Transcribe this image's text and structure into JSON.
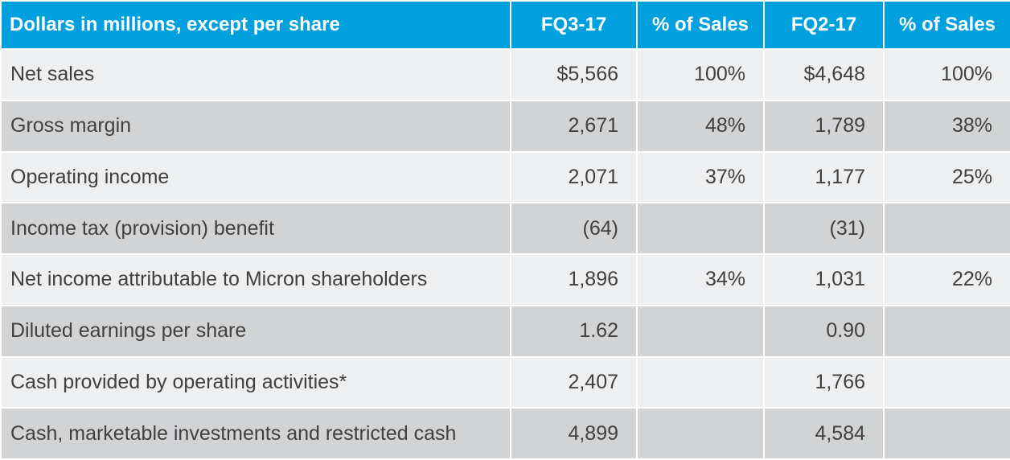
{
  "table": {
    "headers": [
      "Dollars in millions, except per share",
      "FQ3-17",
      "% of Sales",
      "FQ2-17",
      "% of Sales"
    ],
    "rows": [
      [
        "Net sales",
        "$5,566",
        "100%",
        "$4,648",
        "100%"
      ],
      [
        "Gross margin",
        "2,671",
        "48%",
        "1,789",
        "38%"
      ],
      [
        "Operating income",
        "2,071",
        "37%",
        "1,177",
        "25%"
      ],
      [
        "Income tax (provision) benefit",
        "(64)",
        "",
        "(31)",
        ""
      ],
      [
        "Net income attributable to Micron shareholders",
        "1,896",
        "34%",
        "1,031",
        "22%"
      ],
      [
        "Diluted earnings per share",
        "1.62",
        "",
        "0.90",
        ""
      ],
      [
        "Cash provided by operating activities*",
        "2,407",
        "",
        "1,766",
        ""
      ],
      [
        "Cash, marketable investments and restricted cash",
        "4,899",
        "",
        "4,584",
        ""
      ]
    ]
  },
  "colors": {
    "header_bg": "#00a0df",
    "row_light": "#eeeff1",
    "row_dark": "#d2d3d5",
    "text": "#404040"
  }
}
